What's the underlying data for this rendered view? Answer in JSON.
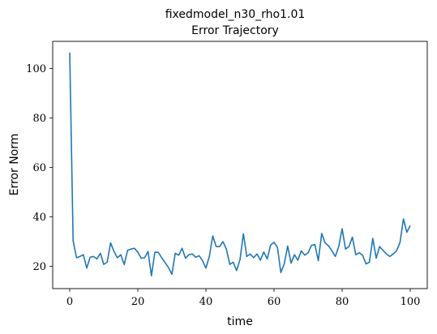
{
  "chart_data": {
    "type": "line",
    "title": "fixedmodel_n30_rho1.01",
    "subtitle": "Error Trajectory",
    "xlabel": "time",
    "ylabel": "Error Norm",
    "xlim": [
      -5,
      105
    ],
    "ylim": [
      11,
      111
    ],
    "xticks": [
      0,
      20,
      40,
      60,
      80,
      100
    ],
    "yticks": [
      20,
      40,
      60,
      80,
      100
    ],
    "grid": false,
    "legend": "none",
    "series": [
      {
        "color": "#1f77b4",
        "x": [
          0,
          1,
          2,
          3,
          4,
          5,
          6,
          7,
          8,
          9,
          10,
          11,
          12,
          13,
          14,
          15,
          16,
          17,
          18,
          19,
          20,
          21,
          22,
          23,
          24,
          25,
          26,
          27,
          28,
          29,
          30,
          31,
          32,
          33,
          34,
          35,
          36,
          37,
          38,
          39,
          40,
          41,
          42,
          43,
          44,
          45,
          46,
          47,
          48,
          49,
          50,
          51,
          52,
          53,
          54,
          55,
          56,
          57,
          58,
          59,
          60,
          61,
          62,
          63,
          64,
          65,
          66,
          67,
          68,
          69,
          70,
          71,
          72,
          73,
          74,
          75,
          76,
          77,
          78,
          79,
          80,
          81,
          82,
          83,
          84,
          85,
          86,
          87,
          88,
          89,
          90,
          91,
          92,
          93,
          94,
          95,
          96,
          97,
          98,
          99,
          100
        ],
        "values": [
          106.5,
          30.3,
          23.5,
          24.0,
          24.7,
          19.3,
          23.7,
          24.0,
          23.0,
          25.3,
          20.8,
          21.7,
          29.5,
          26.0,
          23.5,
          24.7,
          20.7,
          26.5,
          27.0,
          27.3,
          25.7,
          23.3,
          23.5,
          26.0,
          16.2,
          25.7,
          25.7,
          23.5,
          21.5,
          19.5,
          16.8,
          25.3,
          24.5,
          27.3,
          23.3,
          24.7,
          25.0,
          23.7,
          24.3,
          22.3,
          19.3,
          24.0,
          32.3,
          28.0,
          28.0,
          30.0,
          27.0,
          20.8,
          21.7,
          18.3,
          22.7,
          33.2,
          24.0,
          25.0,
          23.5,
          25.0,
          22.5,
          25.8,
          23.0,
          28.7,
          29.7,
          27.7,
          17.5,
          21.0,
          28.2,
          21.3,
          24.7,
          22.5,
          26.3,
          24.5,
          25.5,
          28.5,
          28.8,
          22.3,
          33.3,
          29.5,
          28.3,
          26.3,
          24.0,
          28.0,
          35.2,
          27.0,
          28.0,
          31.8,
          24.7,
          25.5,
          24.5,
          21.0,
          21.7,
          31.3,
          23.3,
          28.0,
          26.5,
          25.0,
          24.0,
          25.0,
          26.3,
          29.7,
          39.2,
          33.8,
          36.5
        ]
      }
    ]
  }
}
